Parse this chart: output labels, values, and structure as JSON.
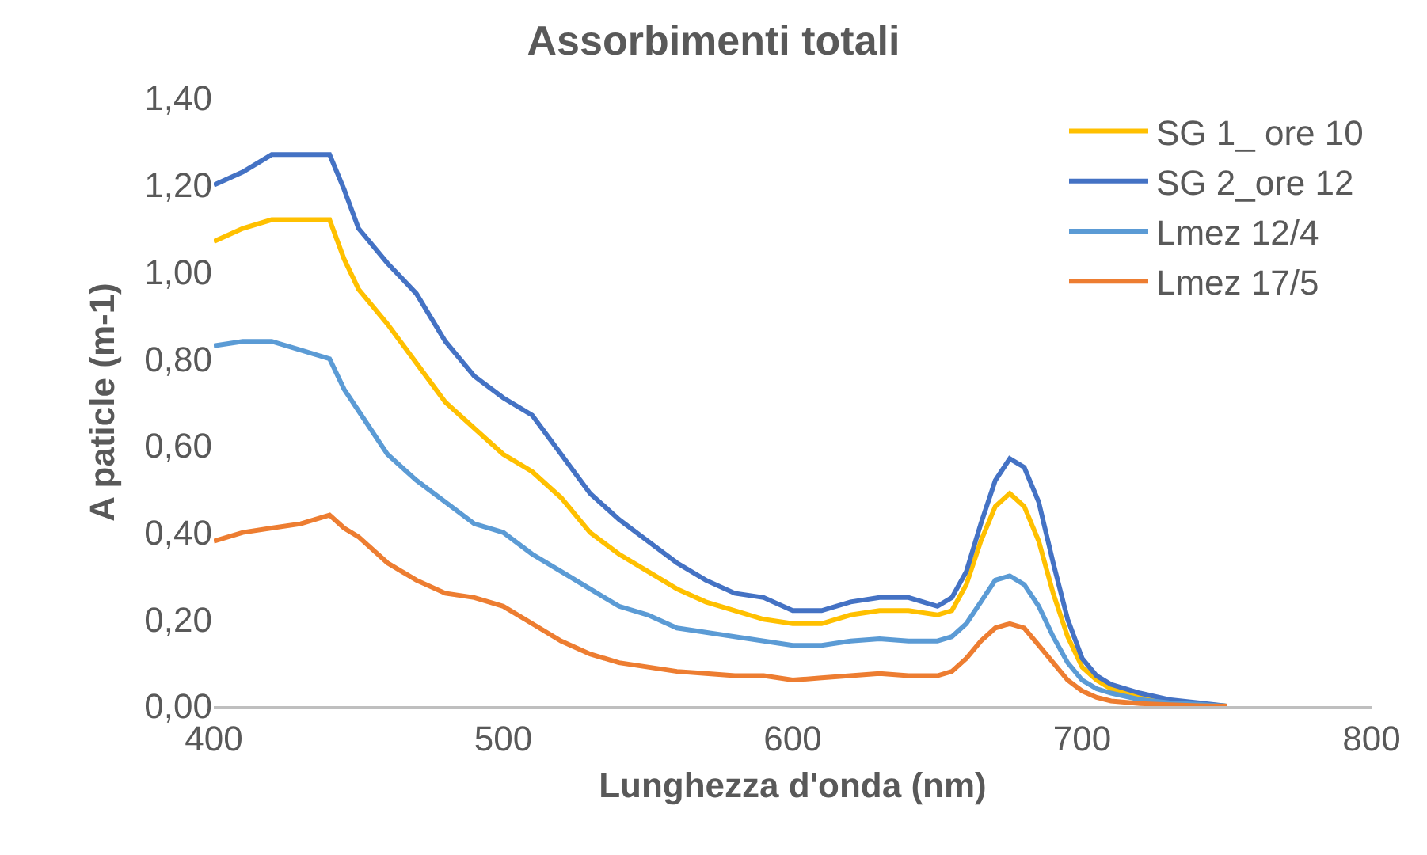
{
  "chart_data": {
    "type": "line",
    "title": "Assorbimenti totali",
    "xlabel": "Lunghezza d'onda (nm)",
    "ylabel": "A paticle (m-1)",
    "x": [
      400,
      410,
      420,
      430,
      440,
      445,
      450,
      460,
      470,
      480,
      490,
      500,
      510,
      520,
      530,
      540,
      550,
      560,
      570,
      580,
      590,
      600,
      610,
      620,
      630,
      640,
      650,
      655,
      660,
      665,
      670,
      675,
      680,
      685,
      690,
      695,
      700,
      705,
      710,
      720,
      730,
      740,
      750
    ],
    "series": [
      {
        "name": "SG 1_ ore 10",
        "color": "#ffc000",
        "values": [
          1.07,
          1.1,
          1.12,
          1.12,
          1.12,
          1.03,
          0.96,
          0.88,
          0.79,
          0.7,
          0.64,
          0.58,
          0.54,
          0.48,
          0.4,
          0.35,
          0.31,
          0.27,
          0.24,
          0.22,
          0.2,
          0.19,
          0.19,
          0.21,
          0.22,
          0.22,
          0.21,
          0.22,
          0.28,
          0.38,
          0.46,
          0.49,
          0.46,
          0.38,
          0.26,
          0.16,
          0.09,
          0.06,
          0.04,
          0.025,
          0.012,
          0.006,
          0
        ]
      },
      {
        "name": "SG 2_ore 12",
        "color": "#4472c4",
        "values": [
          1.2,
          1.23,
          1.27,
          1.27,
          1.27,
          1.19,
          1.1,
          1.02,
          0.95,
          0.84,
          0.76,
          0.71,
          0.67,
          0.58,
          0.49,
          0.43,
          0.38,
          0.33,
          0.29,
          0.26,
          0.25,
          0.22,
          0.22,
          0.24,
          0.25,
          0.25,
          0.23,
          0.25,
          0.31,
          0.42,
          0.52,
          0.57,
          0.55,
          0.47,
          0.33,
          0.2,
          0.11,
          0.07,
          0.05,
          0.03,
          0.015,
          0.008,
          0
        ]
      },
      {
        "name": "Lmez 12/4",
        "color": "#5b9bd5",
        "values": [
          0.83,
          0.84,
          0.84,
          0.82,
          0.8,
          0.73,
          0.68,
          0.58,
          0.52,
          0.47,
          0.42,
          0.4,
          0.35,
          0.31,
          0.27,
          0.23,
          0.21,
          0.18,
          0.17,
          0.16,
          0.15,
          0.14,
          0.14,
          0.15,
          0.155,
          0.15,
          0.15,
          0.16,
          0.19,
          0.24,
          0.29,
          0.3,
          0.28,
          0.23,
          0.16,
          0.1,
          0.06,
          0.04,
          0.03,
          0.015,
          0.008,
          0.004,
          0
        ]
      },
      {
        "name": "Lmez 17/5",
        "color": "#ed7d31",
        "values": [
          0.38,
          0.4,
          0.41,
          0.42,
          0.44,
          0.41,
          0.39,
          0.33,
          0.29,
          0.26,
          0.25,
          0.23,
          0.19,
          0.15,
          0.12,
          0.1,
          0.09,
          0.08,
          0.075,
          0.07,
          0.07,
          0.06,
          0.065,
          0.07,
          0.075,
          0.07,
          0.07,
          0.08,
          0.11,
          0.15,
          0.18,
          0.19,
          0.18,
          0.14,
          0.1,
          0.06,
          0.035,
          0.02,
          0.012,
          0.006,
          0.003,
          0.001,
          0
        ]
      }
    ],
    "xlim": [
      400,
      800
    ],
    "xticks": [
      400,
      500,
      600,
      700,
      800
    ],
    "ylim": [
      0,
      1.4
    ],
    "yticks": [
      {
        "value": 0,
        "label": "0,00"
      },
      {
        "value": 0.2,
        "label": "0,20"
      },
      {
        "value": 0.4,
        "label": "0,40"
      },
      {
        "value": 0.6,
        "label": "0,60"
      },
      {
        "value": 0.8,
        "label": "0,80"
      },
      {
        "value": 1,
        "label": "1,00"
      },
      {
        "value": 1.2,
        "label": "1,20"
      },
      {
        "value": 1.4,
        "label": "1,40"
      }
    ],
    "grid": false,
    "legend": "top right",
    "marker": "none",
    "line_style": "solid"
  }
}
